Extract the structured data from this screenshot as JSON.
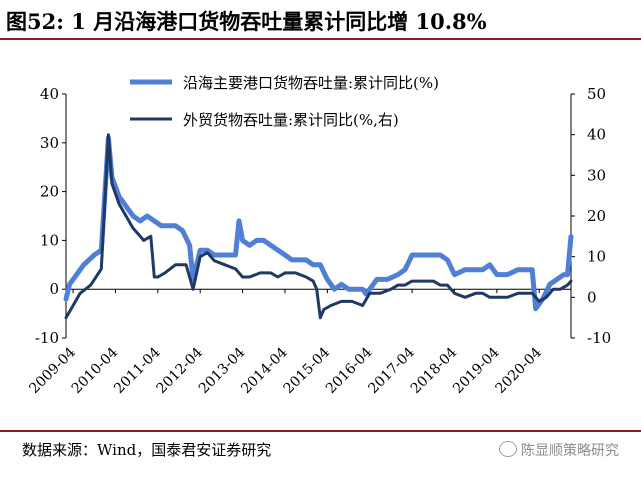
{
  "title": "图52: 1 月沿海港口货物吞吐量累计同比增 10.8%",
  "source": "数据来源：Wind，国泰君安证券研究",
  "watermark": "陈显顺策略研究",
  "colors": {
    "coastal_series": "#4f7fd6",
    "foreign_trade_series": "#1f3864",
    "rule": "#8b1a1a"
  },
  "chart_data": {
    "type": "line",
    "grid": false,
    "legend_position": "top-right",
    "y_left_ticks": [
      "40",
      "30",
      "20",
      "10",
      "0",
      "-10"
    ],
    "y_right_ticks": [
      "50",
      "40",
      "30",
      "20",
      "10",
      "0",
      "-10"
    ],
    "ylim_left": [
      -10,
      40
    ],
    "ylim_right": [
      -10,
      50
    ],
    "x_tick_labels": [
      "2009-04",
      "2010-04",
      "2011-04",
      "2012-04",
      "2013-04",
      "2014-04",
      "2015-04",
      "2016-04",
      "2017-04",
      "2018-04",
      "2019-04",
      "2020-04"
    ],
    "x_range": [
      "2009-02",
      "2021-01"
    ],
    "series": [
      {
        "name": "沿海主要港口货物吞吐量:累计同比(%)",
        "axis": "left",
        "x": [
          "2009-02",
          "2009-03",
          "2009-05",
          "2009-07",
          "2009-10",
          "2009-12",
          "2010-02",
          "2010-03",
          "2010-05",
          "2010-07",
          "2010-09",
          "2010-11",
          "2011-01",
          "2011-03",
          "2011-05",
          "2011-07",
          "2011-09",
          "2011-11",
          "2012-01",
          "2012-02",
          "2012-04",
          "2012-06",
          "2012-08",
          "2012-10",
          "2012-12",
          "2013-02",
          "2013-03",
          "2013-04",
          "2013-06",
          "2013-08",
          "2013-10",
          "2013-12",
          "2014-02",
          "2014-04",
          "2014-06",
          "2014-08",
          "2014-10",
          "2014-12",
          "2015-02",
          "2015-04",
          "2015-06",
          "2015-08",
          "2015-10",
          "2015-12",
          "2016-02",
          "2016-03",
          "2016-06",
          "2016-09",
          "2016-12",
          "2017-02",
          "2017-04",
          "2017-07",
          "2017-10",
          "2017-12",
          "2018-02",
          "2018-04",
          "2018-07",
          "2018-10",
          "2018-12",
          "2019-02",
          "2019-04",
          "2019-07",
          "2019-10",
          "2019-12",
          "2020-02",
          "2020-03",
          "2020-05",
          "2020-07",
          "2020-09",
          "2020-11",
          "2020-12",
          "2021-01"
        ],
        "values": [
          -2,
          1,
          3,
          5,
          7,
          8,
          31,
          23,
          19,
          17,
          15,
          14,
          15,
          14,
          13,
          13,
          13,
          12,
          9,
          2,
          8,
          8,
          7,
          7,
          7,
          7,
          14,
          10,
          9,
          10,
          10,
          9,
          8,
          7,
          6,
          6,
          6,
          5,
          5,
          2,
          0,
          1,
          0,
          0,
          0,
          -1,
          2,
          2,
          3,
          4,
          7,
          7,
          7,
          7,
          6,
          3,
          4,
          4,
          4,
          5,
          3,
          3,
          4,
          4,
          4,
          -4,
          -2,
          1,
          2,
          3,
          3,
          10.8
        ]
      },
      {
        "name": "外贸货物吞吐量:累计同比(%,右)",
        "axis": "right",
        "x": [
          "2009-02",
          "2009-04",
          "2009-06",
          "2009-09",
          "2009-12",
          "2010-02",
          "2010-03",
          "2010-05",
          "2010-07",
          "2010-09",
          "2010-11",
          "2010-12",
          "2011-02",
          "2011-03",
          "2011-04",
          "2011-06",
          "2011-09",
          "2011-12",
          "2012-01",
          "2012-02",
          "2012-04",
          "2012-06",
          "2012-08",
          "2012-11",
          "2013-02",
          "2013-04",
          "2013-06",
          "2013-09",
          "2013-12",
          "2014-02",
          "2014-04",
          "2014-07",
          "2014-10",
          "2014-12",
          "2015-01",
          "2015-02",
          "2015-03",
          "2015-05",
          "2015-08",
          "2015-11",
          "2016-02",
          "2016-04",
          "2016-07",
          "2016-10",
          "2016-12",
          "2017-02",
          "2017-04",
          "2017-07",
          "2017-10",
          "2017-12",
          "2018-02",
          "2018-04",
          "2018-07",
          "2018-10",
          "2018-12",
          "2019-02",
          "2019-04",
          "2019-07",
          "2019-10",
          "2019-12",
          "2020-02",
          "2020-04",
          "2020-06",
          "2020-08",
          "2020-10",
          "2020-12",
          "2021-01"
        ],
        "values": [
          -5,
          -2,
          1,
          3,
          7,
          40,
          28,
          23,
          20,
          17,
          15,
          14,
          15,
          5,
          5,
          6,
          8,
          8,
          5,
          2,
          10,
          11,
          9,
          8,
          7,
          5,
          5,
          6,
          6,
          5,
          6,
          6,
          5,
          4,
          2,
          -5,
          -3,
          -2,
          -1,
          -1,
          -2,
          1,
          1,
          2,
          3,
          3,
          4,
          4,
          4,
          3,
          3,
          1,
          0,
          1,
          1,
          0,
          0,
          0,
          1,
          1,
          1,
          -1,
          0,
          2,
          2,
          3,
          4
        ]
      }
    ]
  }
}
